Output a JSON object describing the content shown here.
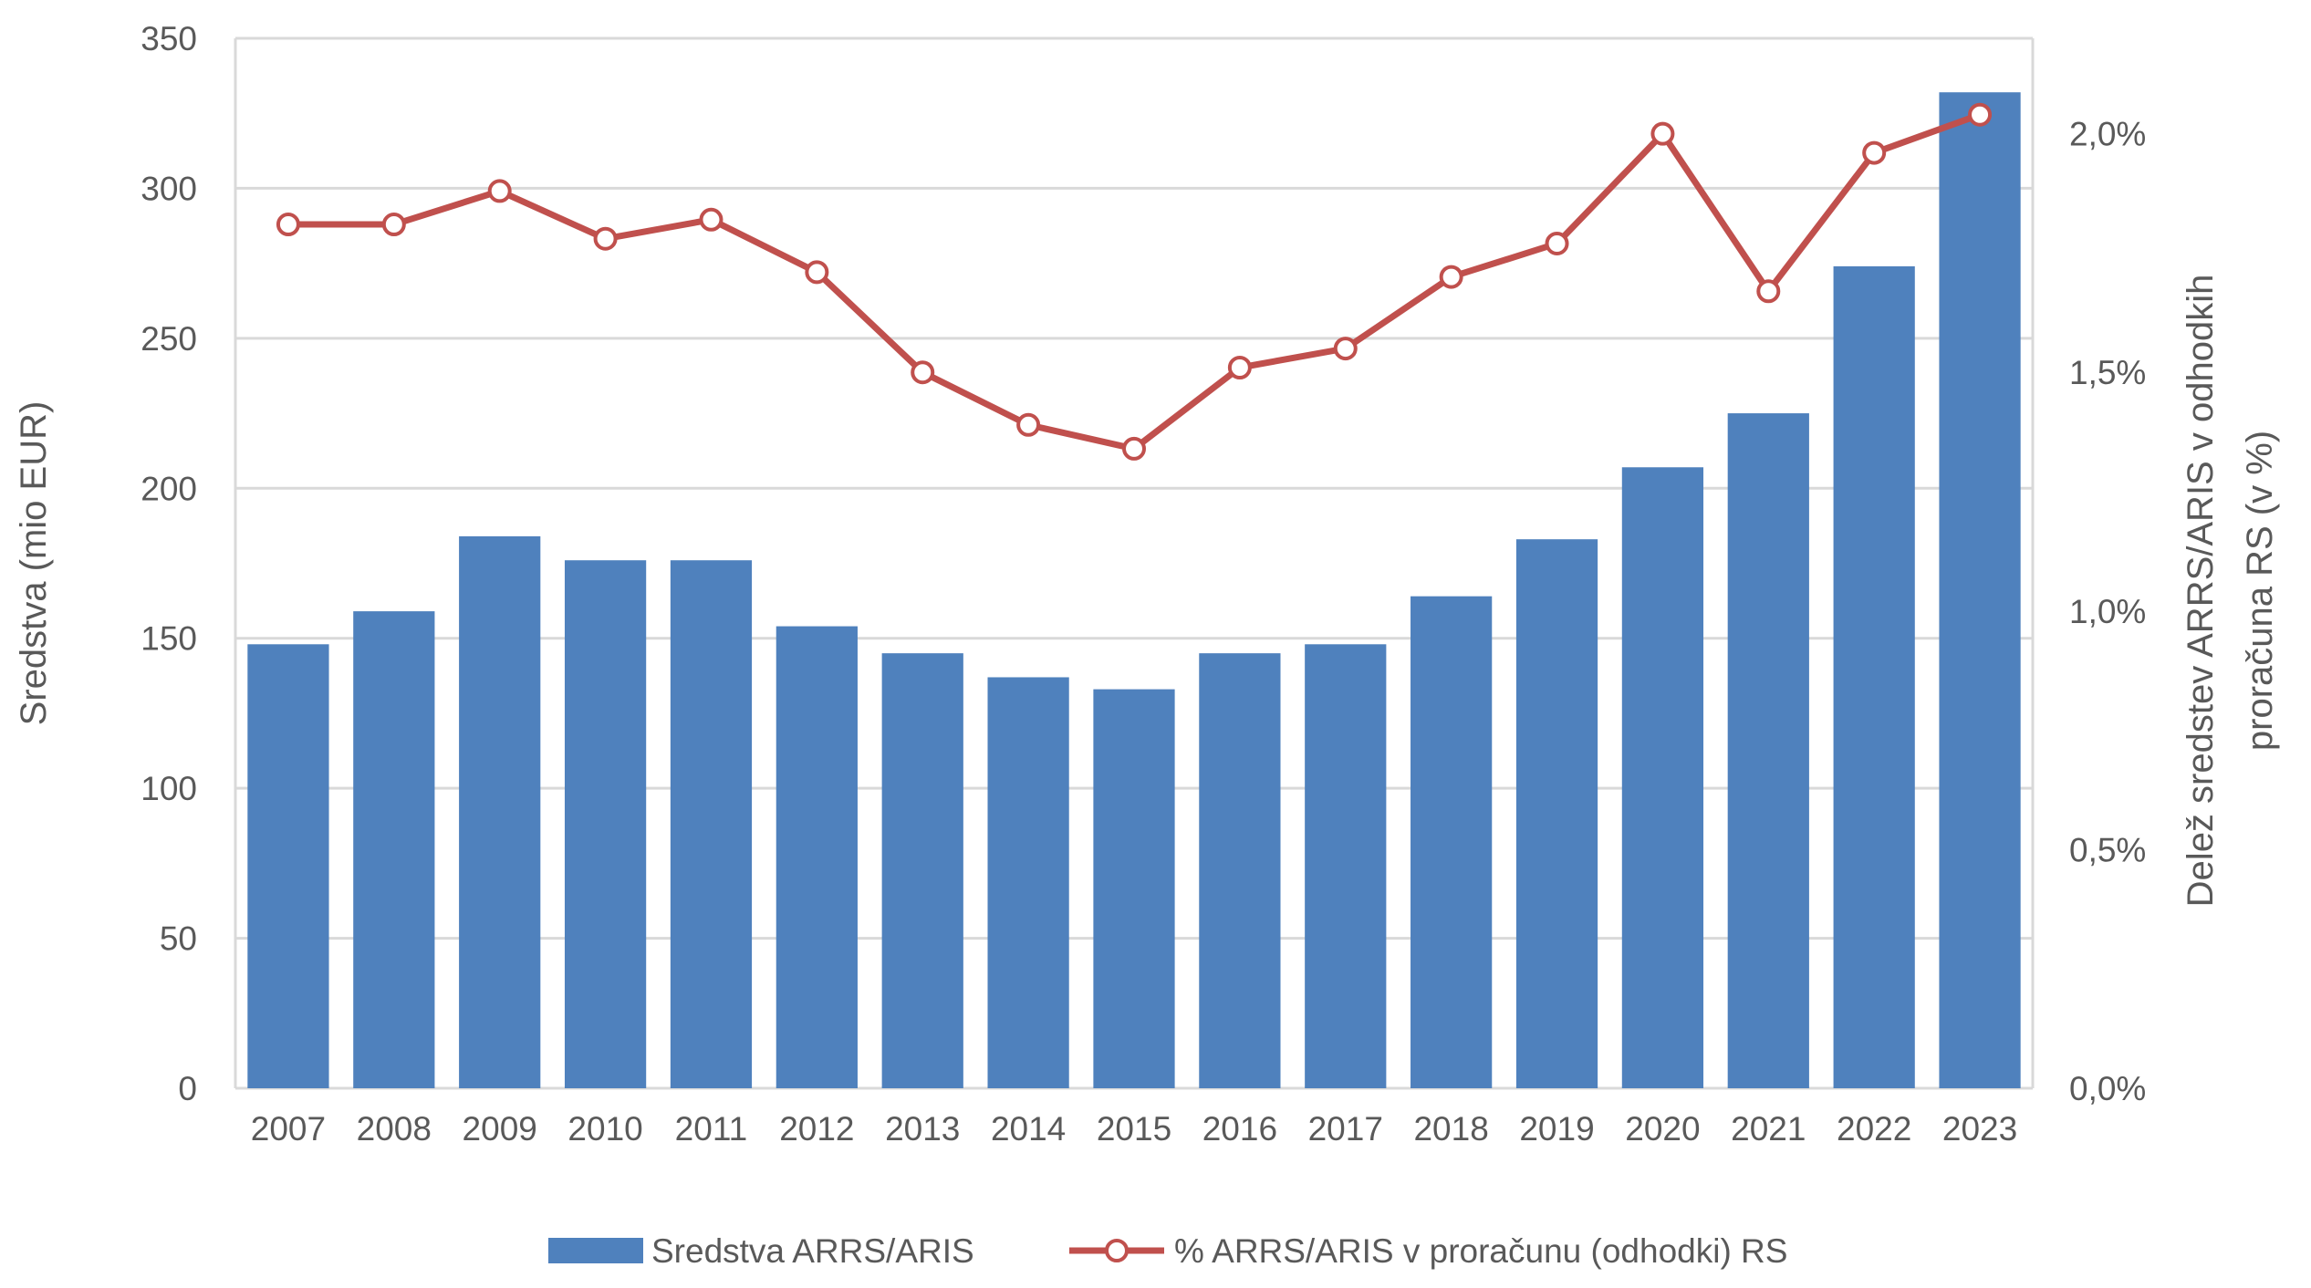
{
  "chart_data": {
    "type": "bar",
    "title": "",
    "categories": [
      "2007",
      "2008",
      "2009",
      "2010",
      "2011",
      "2012",
      "2013",
      "2014",
      "2015",
      "2016",
      "2017",
      "2018",
      "2019",
      "2020",
      "2021",
      "2022",
      "2023"
    ],
    "series": [
      {
        "name": "Sredstva ARRS/ARIS",
        "type": "bar",
        "axis": "left",
        "color": "#4F81BD",
        "values": [
          148,
          159,
          184,
          176,
          176,
          154,
          145,
          137,
          133,
          145,
          148,
          164,
          183,
          207,
          225,
          274,
          332
        ]
      },
      {
        "name": "% ARRS/ARIS v proračunu (odhodki) RS",
        "type": "line",
        "axis": "right",
        "color": "#C0504D",
        "marker": "circle-hollow",
        "values": [
          1.81,
          1.81,
          1.88,
          1.78,
          1.82,
          1.71,
          1.5,
          1.39,
          1.34,
          1.51,
          1.55,
          1.7,
          1.77,
          2.0,
          1.67,
          1.96,
          2.04
        ]
      }
    ],
    "y_left": {
      "label": "Sredstva (mio EUR)",
      "min": 0,
      "max": 350,
      "ticks": [
        0,
        50,
        100,
        150,
        200,
        250,
        300,
        350
      ],
      "tick_labels": [
        "0",
        "50",
        "100",
        "150",
        "200",
        "250",
        "300",
        "350"
      ]
    },
    "y_right": {
      "label_line1": "Delež sredstev ARRS/ARIS v odhodkih",
      "label_line2": "proračuna RS (v %)",
      "min": 0,
      "max": 2.2,
      "ticks": [
        0,
        0.5,
        1.0,
        1.5,
        2.0
      ],
      "tick_labels": [
        "0,0%",
        "0,5%",
        "1,0%",
        "1,5%",
        "2,0%"
      ]
    },
    "grid": true,
    "legend_position": "bottom-center",
    "legend": [
      "Sredstva ARRS/ARIS",
      "% ARRS/ARIS v proračunu (odhodki) RS"
    ]
  }
}
